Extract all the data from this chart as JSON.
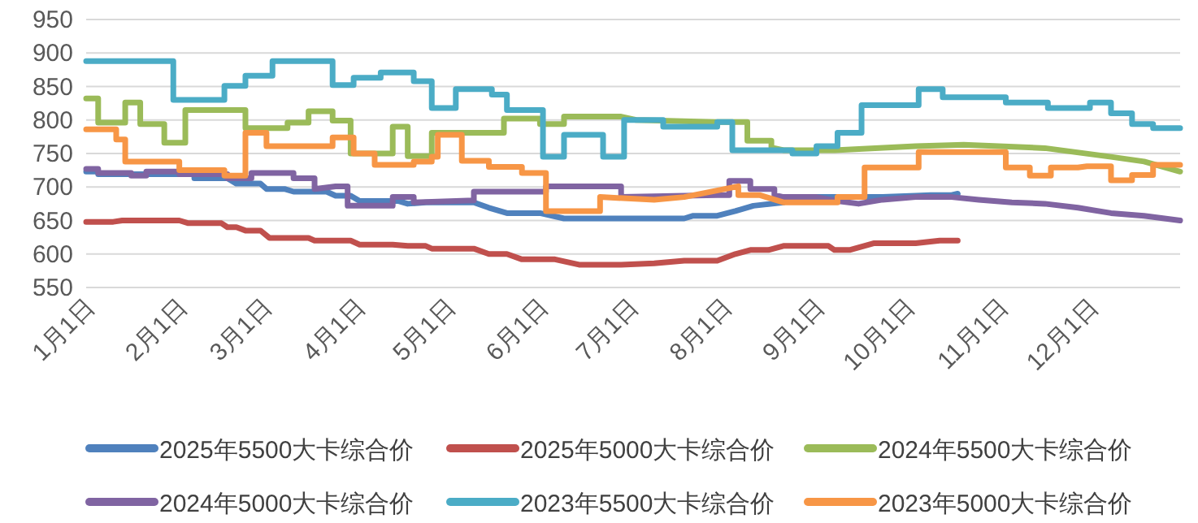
{
  "chart_data": {
    "type": "line",
    "grid": "y",
    "legend": "bottom",
    "line_style": "solid",
    "xlim": [
      "--01-01",
      "--12-31"
    ],
    "xticks": [
      {
        "value": "--01-01",
        "label": "1月1日"
      },
      {
        "value": "--02-01",
        "label": "2月1日"
      },
      {
        "value": "--03-01",
        "label": "3月1日"
      },
      {
        "value": "--04-01",
        "label": "4月1日"
      },
      {
        "value": "--05-01",
        "label": "5月1日"
      },
      {
        "value": "--06-01",
        "label": "6月1日"
      },
      {
        "value": "--07-01",
        "label": "7月1日"
      },
      {
        "value": "--08-01",
        "label": "8月1日"
      },
      {
        "value": "--09-01",
        "label": "9月1日"
      },
      {
        "value": "--10-01",
        "label": "10月1日"
      },
      {
        "value": "--11-01",
        "label": "11月1日"
      },
      {
        "value": "--12-01",
        "label": "12月1日"
      }
    ],
    "ylim": [
      550,
      950
    ],
    "yticks": [
      550,
      600,
      650,
      700,
      750,
      800,
      850,
      900,
      950
    ],
    "series": [
      {
        "name": "2025年5500大卡综合价",
        "color": "#4f81bd",
        "x": [
          "--01-01",
          "--01-05",
          "--01-05",
          "--02-06",
          "--02-06",
          "--02-17",
          "--02-20",
          "--02-28",
          "--03-02",
          "--03-08",
          "--03-11",
          "--03-22",
          "--03-25",
          "--03-30",
          "--04-02",
          "--04-15",
          "--04-18",
          "--04-24",
          "--05-10",
          "--05-15",
          "--05-21",
          "--06-01",
          "--06-09",
          "--07-19",
          "--07-22",
          "--07-30",
          "--08-05",
          "--08-11",
          "--08-21",
          "--08-21",
          "--09-23",
          "--10-04",
          "--10-09",
          "--10-16",
          "--10-18"
        ],
        "values": [
          723,
          723,
          719,
          719,
          713,
          713,
          705,
          705,
          697,
          697,
          693,
          693,
          687,
          687,
          679,
          679,
          675,
          677,
          677,
          669,
          661,
          661,
          653,
          653,
          657,
          657,
          664,
          672,
          677,
          685,
          685,
          687,
          688,
          688,
          690
        ]
      },
      {
        "name": "2025年5000大卡综合价",
        "color": "#c0504d",
        "x": [
          "--01-01",
          "--01-10",
          "--01-13",
          "--02-01",
          "--02-04",
          "--02-15",
          "--02-17",
          "--02-20",
          "--02-23",
          "--02-28",
          "--03-03",
          "--03-16",
          "--03-18",
          "--03-30",
          "--04-02",
          "--04-13",
          "--04-18",
          "--04-24",
          "--04-26",
          "--05-10",
          "--05-15",
          "--05-21",
          "--05-26",
          "--06-06",
          "--06-14",
          "--06-28",
          "--07-09",
          "--07-19",
          "--07-30",
          "--08-05",
          "--08-10",
          "--08-16",
          "--08-21",
          "--09-05",
          "--09-07",
          "--09-12",
          "--09-20",
          "--10-04",
          "--10-12",
          "--10-18"
        ],
        "values": [
          648,
          648,
          650,
          650,
          646,
          646,
          640,
          640,
          635,
          635,
          624,
          624,
          620,
          620,
          614,
          614,
          612,
          612,
          608,
          608,
          600,
          600,
          592,
          592,
          584,
          584,
          586,
          590,
          590,
          600,
          606,
          606,
          612,
          612,
          606,
          606,
          616,
          616,
          620,
          620
        ]
      },
      {
        "name": "2024年5500大卡综合价",
        "color": "#9bbb59",
        "x": [
          "--01-01",
          "--01-05",
          "--01-05",
          "--01-14",
          "--01-14",
          "--01-19",
          "--01-19",
          "--01-27",
          "--01-27",
          "--02-03",
          "--02-03",
          "--02-23",
          "--02-23",
          "--03-09",
          "--03-09",
          "--03-16",
          "--03-16",
          "--03-24",
          "--03-24",
          "--03-30",
          "--03-30",
          "--04-13",
          "--04-13",
          "--04-18",
          "--04-18",
          "--04-26",
          "--04-26",
          "--05-20",
          "--05-20",
          "--06-01",
          "--06-01",
          "--06-09",
          "--06-09",
          "--06-28",
          "--07-03",
          "--07-29",
          "--08-09",
          "--08-09",
          "--08-17",
          "--08-17",
          "--08-21",
          "--09-07",
          "--10-04",
          "--10-20",
          "--11-16",
          "--12-08",
          "--12-19",
          "--12-31"
        ],
        "values": [
          832,
          832,
          796,
          796,
          826,
          826,
          794,
          794,
          766,
          766,
          815,
          815,
          788,
          788,
          796,
          796,
          813,
          813,
          799,
          799,
          750,
          750,
          790,
          790,
          746,
          746,
          781,
          781,
          802,
          802,
          794,
          794,
          805,
          805,
          800,
          797,
          797,
          769,
          769,
          759,
          755,
          755,
          761,
          763,
          758,
          745,
          738,
          723
        ]
      },
      {
        "name": "2024年5000大卡综合价",
        "color": "#8064a2",
        "x": [
          "--01-01",
          "--01-05",
          "--01-05",
          "--01-16",
          "--01-16",
          "--01-21",
          "--01-21",
          "--02-01",
          "--02-01",
          "--02-17",
          "--02-17",
          "--02-25",
          "--02-25",
          "--03-11",
          "--03-11",
          "--03-18",
          "--03-18",
          "--03-25",
          "--03-29",
          "--03-29",
          "--04-13",
          "--04-13",
          "--04-20",
          "--04-20",
          "--05-10",
          "--05-10",
          "--06-03",
          "--06-03",
          "--06-28",
          "--06-28",
          "--07-30",
          "--08-03",
          "--08-03",
          "--08-10",
          "--08-10",
          "--08-18",
          "--08-18",
          "--08-21",
          "--09-01",
          "--09-08",
          "--09-15",
          "--09-23",
          "--10-04",
          "--10-16",
          "--10-25",
          "--11-05",
          "--11-16",
          "--11-27",
          "--12-08",
          "--12-19",
          "--12-31"
        ],
        "values": [
          727,
          727,
          721,
          721,
          717,
          717,
          723,
          723,
          719,
          719,
          713,
          713,
          721,
          721,
          713,
          713,
          697,
          701,
          701,
          672,
          672,
          685,
          685,
          677,
          680,
          693,
          693,
          701,
          701,
          685,
          688,
          688,
          709,
          709,
          697,
          697,
          688,
          685,
          685,
          679,
          675,
          681,
          685,
          685,
          681,
          677,
          675,
          669,
          661,
          657,
          650
        ]
      },
      {
        "name": "2023年5500大卡综合价",
        "color": "#4bacc6",
        "x": [
          "--01-01",
          "--01-30",
          "--01-30",
          "--02-16",
          "--02-16",
          "--02-23",
          "--02-23",
          "--03-04",
          "--03-04",
          "--03-24",
          "--03-24",
          "--03-31",
          "--03-31",
          "--04-09",
          "--04-09",
          "--04-20",
          "--04-20",
          "--04-26",
          "--04-26",
          "--05-04",
          "--05-04",
          "--05-16",
          "--05-16",
          "--05-21",
          "--05-21",
          "--06-02",
          "--06-02",
          "--06-09",
          "--06-09",
          "--06-22",
          "--06-22",
          "--06-29",
          "--06-29",
          "--07-12",
          "--07-12",
          "--07-30",
          "--07-30",
          "--08-04",
          "--08-04",
          "--08-24",
          "--08-24",
          "--09-01",
          "--09-01",
          "--09-08",
          "--09-08",
          "--09-16",
          "--09-16",
          "--10-05",
          "--10-05",
          "--10-13",
          "--10-13",
          "--11-03",
          "--11-03",
          "--11-17",
          "--11-17",
          "--12-01",
          "--12-01",
          "--12-08",
          "--12-08",
          "--12-15",
          "--12-15",
          "--12-22",
          "--12-22",
          "--12-31"
        ],
        "values": [
          888,
          888,
          830,
          830,
          851,
          851,
          866,
          866,
          888,
          888,
          852,
          852,
          863,
          863,
          871,
          871,
          858,
          858,
          818,
          818,
          846,
          846,
          838,
          838,
          815,
          815,
          745,
          745,
          778,
          778,
          745,
          745,
          800,
          800,
          790,
          790,
          797,
          797,
          755,
          755,
          750,
          750,
          761,
          761,
          781,
          781,
          822,
          822,
          846,
          846,
          834,
          834,
          826,
          826,
          818,
          818,
          826,
          826,
          810,
          810,
          794,
          794,
          788,
          788
        ]
      },
      {
        "name": "2023年5000大卡综合价",
        "color": "#f79646",
        "x": [
          "--01-01",
          "--01-11",
          "--01-11",
          "--01-14",
          "--01-14",
          "--02-01",
          "--02-01",
          "--02-16",
          "--02-16",
          "--02-23",
          "--02-23",
          "--03-02",
          "--03-02",
          "--03-24",
          "--03-24",
          "--03-31",
          "--03-31",
          "--04-07",
          "--04-07",
          "--04-20",
          "--04-20",
          "--04-26",
          "--04-26",
          "--04-28",
          "--04-28",
          "--05-06",
          "--05-06",
          "--05-15",
          "--05-15",
          "--05-26",
          "--05-26",
          "--06-03",
          "--06-03",
          "--06-21",
          "--06-21",
          "--07-09",
          "--07-19",
          "--08-06",
          "--08-06",
          "--08-13",
          "--08-21",
          "--09-08",
          "--09-08",
          "--09-17",
          "--09-17",
          "--10-05",
          "--10-05",
          "--11-03",
          "--11-03",
          "--11-11",
          "--11-11",
          "--11-18",
          "--11-18",
          "--11-27",
          "--11-30",
          "--12-08",
          "--12-08",
          "--12-15",
          "--12-15",
          "--12-22",
          "--12-22",
          "--12-31"
        ],
        "values": [
          786,
          786,
          771,
          771,
          738,
          738,
          725,
          725,
          717,
          717,
          781,
          781,
          761,
          761,
          774,
          774,
          750,
          750,
          733,
          733,
          738,
          738,
          745,
          745,
          778,
          778,
          739,
          739,
          730,
          730,
          721,
          721,
          664,
          664,
          685,
          681,
          685,
          701,
          688,
          688,
          677,
          677,
          685,
          685,
          729,
          729,
          752,
          752,
          729,
          729,
          717,
          717,
          729,
          729,
          731,
          731,
          710,
          710,
          718,
          718,
          733,
          733
        ]
      }
    ]
  }
}
